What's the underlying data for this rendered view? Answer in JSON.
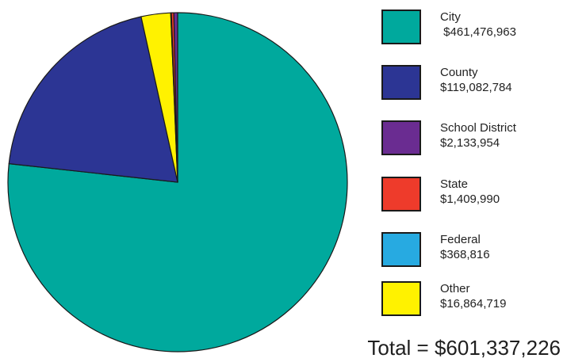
{
  "chart_data": {
    "type": "pie",
    "title": "",
    "series": [
      {
        "name": "City",
        "value": 461476963,
        "label": " $461,476,963",
        "color": "#00a99d"
      },
      {
        "name": "County",
        "value": 119082784,
        "label": "$119,082,784",
        "color": "#2c3594"
      },
      {
        "name": "School District",
        "value": 2133954,
        "label": "$2,133,954",
        "color": "#6a2c91"
      },
      {
        "name": "State",
        "value": 1409990,
        "label": "$1,409,990",
        "color": "#ee3b2b"
      },
      {
        "name": "Federal",
        "value": 368816,
        "label": "$368,816",
        "color": "#27aae1"
      },
      {
        "name": "Other",
        "value": 16864719,
        "label": "$16,864,719",
        "color": "#fff200"
      }
    ],
    "legend_position": "right",
    "total_label": "Total = $601,337,226"
  }
}
